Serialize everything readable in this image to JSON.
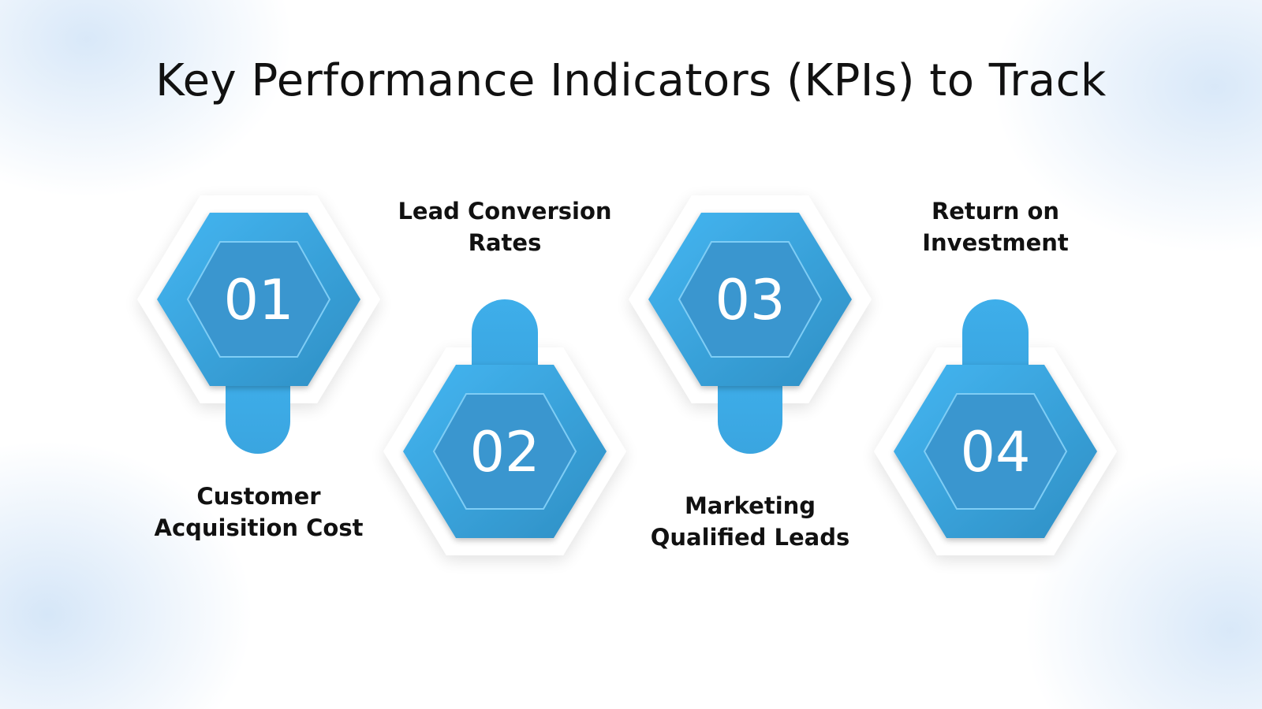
{
  "title": "Key Performance Indicators (KPIs) to Track",
  "steps": [
    {
      "number": "01",
      "label_line1": "Customer",
      "label_line2": "Acquisition Cost"
    },
    {
      "number": "02",
      "label_line1": "Lead Conversion",
      "label_line2": "Rates"
    },
    {
      "number": "03",
      "label_line1": "Marketing",
      "label_line2": "Qualified Leads"
    },
    {
      "number": "04",
      "label_line1": "Return on",
      "label_line2": "Investment"
    }
  ],
  "colors": {
    "hex_light": "#3fb0ee",
    "hex_dark": "#2f8fc2",
    "hex_inner": "#3a9bd2",
    "background": "#ffffff",
    "text": "#111111"
  }
}
